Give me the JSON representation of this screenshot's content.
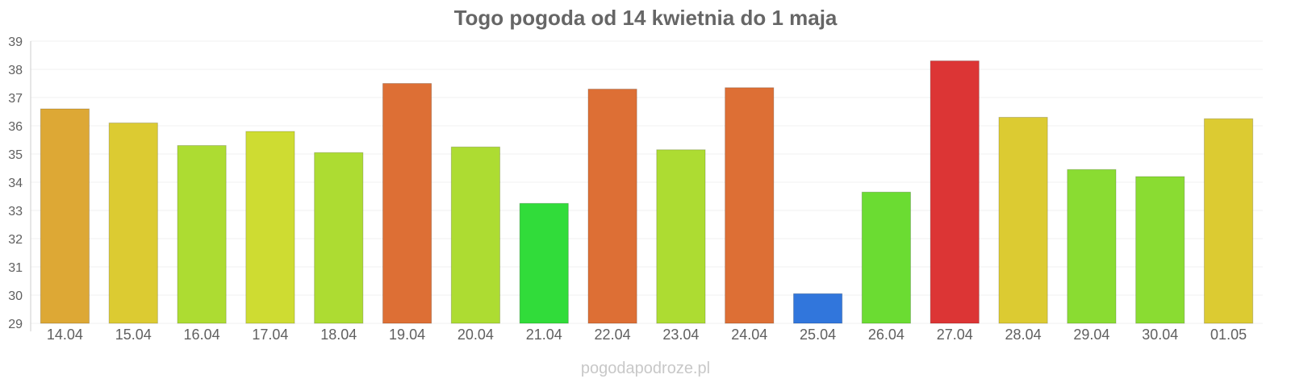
{
  "chart_data": {
    "type": "bar",
    "title": "Togo pogoda od 14 kwietnia do 1 maja",
    "xlabel": "",
    "ylabel": "",
    "ylim": [
      29,
      39
    ],
    "yticks": [
      29,
      30,
      31,
      32,
      33,
      34,
      35,
      36,
      37,
      38,
      39
    ],
    "grid": true,
    "legend": "none",
    "categories": [
      "14.04",
      "15.04",
      "16.04",
      "17.04",
      "18.04",
      "19.04",
      "20.04",
      "21.04",
      "22.04",
      "23.04",
      "24.04",
      "25.04",
      "26.04",
      "27.04",
      "28.04",
      "29.04",
      "30.04",
      "01.05"
    ],
    "values": [
      36.6,
      36.1,
      35.3,
      35.8,
      35.05,
      37.5,
      35.25,
      33.25,
      37.3,
      35.15,
      37.35,
      30.05,
      33.65,
      38.3,
      36.3,
      34.45,
      34.2,
      36.25
    ],
    "colors": [
      "#DDA835",
      "#DCCB32",
      "#ADDC32",
      "#CEDC32",
      "#ADDC32",
      "#DD6F35",
      "#ADDC32",
      "#31DC3A",
      "#DD6F35",
      "#ADDC32",
      "#DD6F35",
      "#3176DC",
      "#6BDC32",
      "#DC3535",
      "#DCCB32",
      "#8ADC32",
      "#8ADC32",
      "#DCCB32"
    ]
  },
  "credit": "pogodapodroze.pl"
}
